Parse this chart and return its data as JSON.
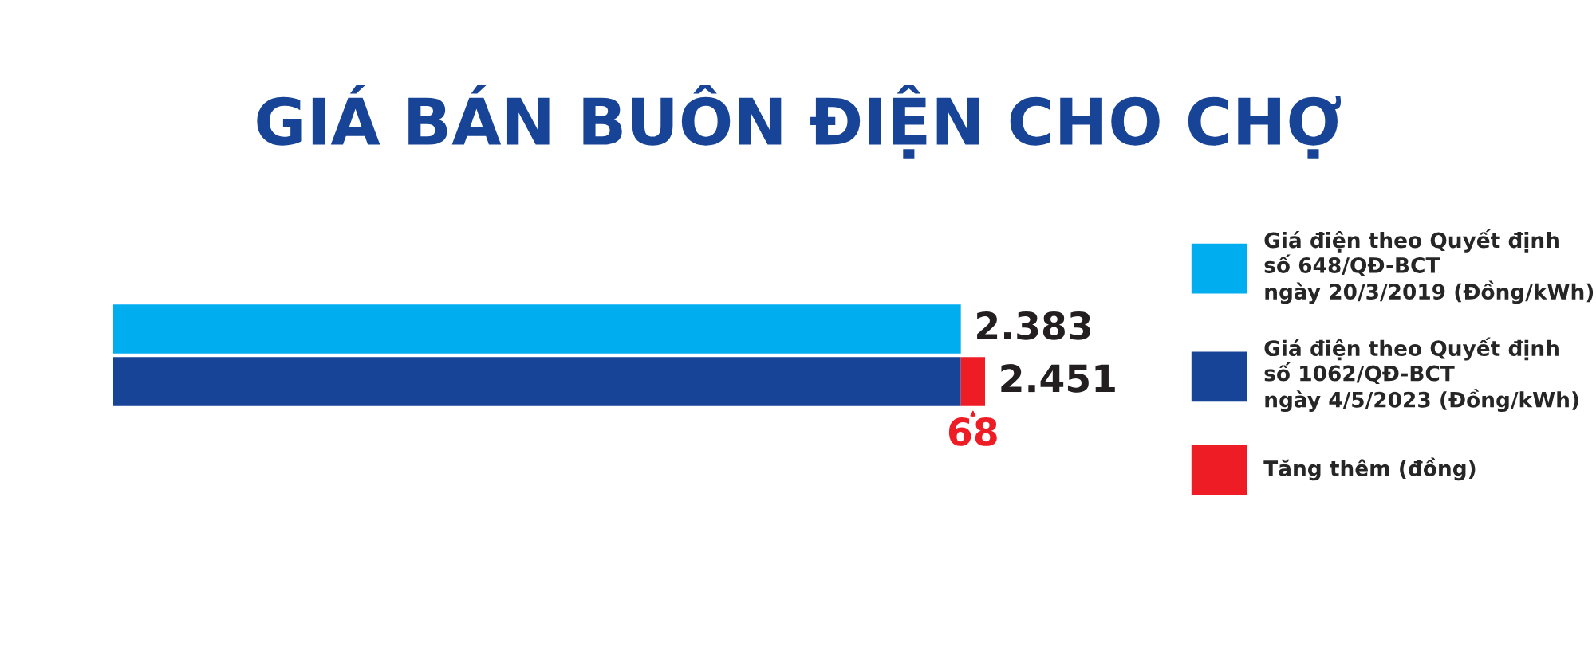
{
  "chart_data": {
    "type": "bar",
    "orientation": "horizontal",
    "stacked": true,
    "title": "GIÁ BÁN BUÔN ĐIỆN CHO CHỢ",
    "categories": [
      null,
      null
    ],
    "series": [
      {
        "name": "Giá điện theo Quyết định\nsố 648/QĐ-BCT\nngày 20/3/2019 (Đồng/kWh)",
        "color": "#00adef",
        "values": [
          2383,
          null
        ],
        "value_labels": [
          "2.383",
          null
        ]
      },
      {
        "name": "Giá điện theo Quyết định\nsố 1062/QĐ-BCT\nngày 4/5/2023 (Đồng/kWh)",
        "color": "#174497",
        "values": [
          null,
          2383
        ]
      },
      {
        "name": "Tăng thêm (đồng)",
        "color": "#ee1c25",
        "values": [
          null,
          68
        ],
        "value_labels": [
          null,
          "68"
        ]
      }
    ],
    "totals": [
      null,
      "2.451"
    ],
    "legend": "right",
    "grid": false
  }
}
